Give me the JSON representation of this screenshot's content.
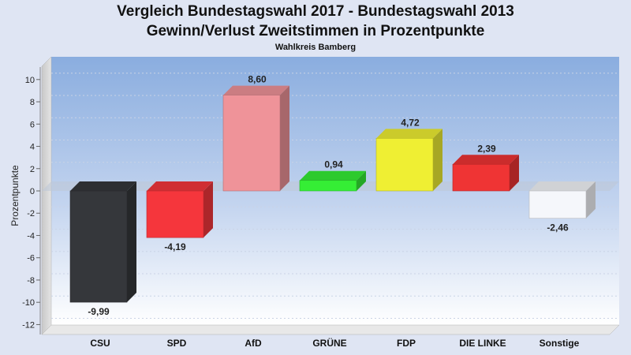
{
  "title": "Vergleich Bundestagswahl 2017 - Bundestagswahl 2013",
  "subtitle": "Gewinn/Verlust Zweitstimmen in Prozentpunkte",
  "caption": "Wahlkreis Bamberg",
  "chart_data": {
    "type": "bar",
    "title": "Vergleich Bundestagswahl 2017 - Bundestagswahl 2013",
    "subtitle": "Gewinn/Verlust Zweitstimmen in Prozentpunkte",
    "xlabel": "",
    "ylabel": "Prozentpunkte",
    "ylim": [
      -12,
      11
    ],
    "yticks": [
      10,
      8,
      6,
      4,
      2,
      0,
      -2,
      -4,
      -6,
      -8,
      -10,
      -12
    ],
    "grid": true,
    "categories": [
      "CSU",
      "SPD",
      "AfD",
      "GRÜNE",
      "FDP",
      "DIE LINKE",
      "Sonstige"
    ],
    "values": [
      -9.99,
      -4.19,
      8.6,
      0.94,
      4.72,
      2.39,
      -2.46
    ],
    "value_labels": [
      "-9,99",
      "-4,19",
      "8,60",
      "0,94",
      "4,72",
      "2,39",
      "-2,46"
    ],
    "colors": [
      "#35373b",
      "#f5363c",
      "#ef9399",
      "#35ee35",
      "#efef33",
      "#ef3434",
      "#f5f7fb"
    ]
  }
}
